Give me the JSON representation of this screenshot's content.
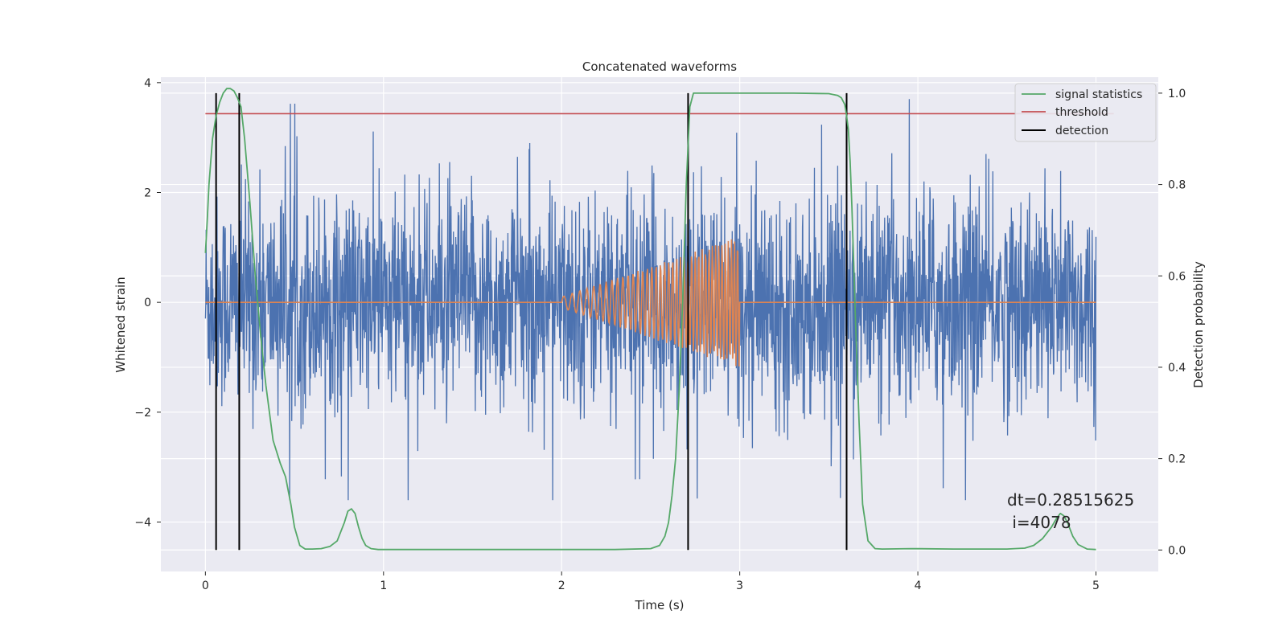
{
  "chart_data": {
    "type": "line",
    "title": "Concatenated waveforms",
    "xlabel": "Time (s)",
    "ylabel_left": "Whitened strain",
    "ylabel_right": "Detection probability",
    "xlim": [
      -0.25,
      5.35
    ],
    "ylim_left": [
      -4.9,
      4.1
    ],
    "ylim_right": [
      -0.047,
      1.035
    ],
    "x_ticks": [
      0,
      1,
      2,
      3,
      4,
      5
    ],
    "y_left_ticks": [
      -4,
      -2,
      0,
      2,
      4
    ],
    "y_left_tick_labels": [
      "−4",
      "−2",
      "0",
      "2",
      "4"
    ],
    "y_right_ticks": [
      0.0,
      0.2,
      0.4,
      0.6,
      0.8,
      1.0
    ],
    "y_right_tick_labels": [
      "0.0",
      "0.2",
      "0.4",
      "0.6",
      "0.8",
      "1.0"
    ],
    "grid": true,
    "legend_position": "top-right",
    "colors": {
      "background": "#eaeaf2",
      "grid": "#ffffff",
      "strain": "#4c72b0",
      "injected": "#dd8452",
      "signal_statistics": "#55a868",
      "threshold": "#c44e52",
      "detection": "#000000"
    },
    "series": [
      {
        "name": "",
        "axis": "left",
        "description_kind": "noise",
        "x_range": [
          0,
          5
        ],
        "envelope_typical": 1.2,
        "envelope_max": 3.7,
        "envelope_min": -3.6
      },
      {
        "name": "",
        "axis": "left",
        "kind": "chirp",
        "x_range": [
          2.0,
          3.0
        ],
        "amplitude_start": 0.1,
        "amplitude_end": 1.2,
        "outside_value": 0
      },
      {
        "name": "signal statistics",
        "axis": "right",
        "x": [
          0,
          0.01,
          0.02,
          0.04,
          0.06,
          0.08,
          0.1,
          0.12,
          0.14,
          0.16,
          0.18,
          0.2,
          0.22,
          0.25,
          0.28,
          0.31,
          0.34,
          0.38,
          0.42,
          0.45,
          0.48,
          0.5,
          0.53,
          0.56,
          0.6,
          0.65,
          0.7,
          0.74,
          0.78,
          0.8,
          0.82,
          0.84,
          0.86,
          0.88,
          0.9,
          0.93,
          0.97,
          1.0,
          1.5,
          2.0,
          2.3,
          2.5,
          2.55,
          2.58,
          2.6,
          2.62,
          2.64,
          2.66,
          2.68,
          2.7,
          2.72,
          2.74,
          2.76,
          3.0,
          3.3,
          3.5,
          3.55,
          3.57,
          3.59,
          3.6,
          3.61,
          3.62,
          3.63,
          3.65,
          3.67,
          3.69,
          3.72,
          3.76,
          3.8,
          3.96,
          4.2,
          4.5,
          4.6,
          4.65,
          4.7,
          4.75,
          4.78,
          4.8,
          4.82,
          4.84,
          4.87,
          4.9,
          4.95,
          5.0
        ],
        "y": [
          0.65,
          0.72,
          0.8,
          0.9,
          0.95,
          0.98,
          1.0,
          1.01,
          1.01,
          1.005,
          0.99,
          0.97,
          0.9,
          0.76,
          0.6,
          0.47,
          0.36,
          0.24,
          0.19,
          0.16,
          0.1,
          0.05,
          0.01,
          0.002,
          0.002,
          0.003,
          0.008,
          0.02,
          0.06,
          0.085,
          0.09,
          0.08,
          0.05,
          0.025,
          0.01,
          0.003,
          0.001,
          0.001,
          0.001,
          0.001,
          0.001,
          0.003,
          0.01,
          0.03,
          0.06,
          0.12,
          0.2,
          0.35,
          0.55,
          0.8,
          0.97,
          1.0,
          1.0,
          1.0,
          1.0,
          0.999,
          0.995,
          0.99,
          0.975,
          0.95,
          0.92,
          0.85,
          0.75,
          0.5,
          0.28,
          0.1,
          0.02,
          0.003,
          0.002,
          0.003,
          0.002,
          0.002,
          0.004,
          0.01,
          0.025,
          0.05,
          0.07,
          0.08,
          0.075,
          0.06,
          0.03,
          0.012,
          0.002,
          0.001
        ]
      },
      {
        "name": "threshold",
        "axis": "right",
        "x": [
          0,
          5.1
        ],
        "y": [
          0.955,
          0.955
        ]
      }
    ],
    "detections": {
      "name": "detection",
      "x": [
        0.06,
        0.19,
        2.71,
        3.6
      ],
      "y_range": [
        0,
        1.0
      ]
    },
    "annotation": {
      "line1": "dt=0.28515625",
      "line2": " i=4078"
    },
    "legend": [
      "signal statistics",
      "threshold",
      "detection"
    ]
  }
}
